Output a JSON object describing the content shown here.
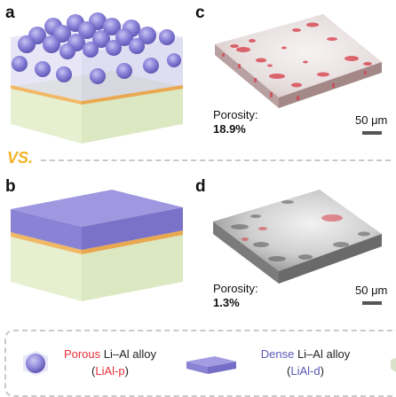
{
  "panels": {
    "a": "a",
    "b": "b",
    "c": "c",
    "d": "d"
  },
  "comparison": "VS.",
  "panel_c": {
    "porosity_label": "Porosity:",
    "porosity_value": "18.9%",
    "scale": "50 μm"
  },
  "panel_d": {
    "porosity_label": "Porosity:",
    "porosity_value": "1.3%",
    "scale": "50 μm"
  },
  "legend": {
    "porous": {
      "word": "Porous",
      "rest": " Li–Al alloy",
      "abbr_open": "(",
      "abbr": "LiAl-p",
      "abbr_close": ")"
    },
    "dense": {
      "word": "Dense",
      "rest": " Li–Al alloy",
      "abbr_open": "(",
      "abbr": "LiAl-d",
      "abbr_close": ")"
    }
  },
  "colors": {
    "porous_accent": "#e5313a",
    "dense_accent": "#5a58b8",
    "vs_color": "#f1b326"
  }
}
